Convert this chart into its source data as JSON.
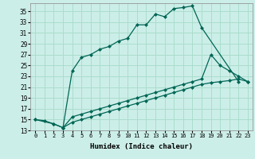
{
  "title": "",
  "xlabel": "Humidex (Indice chaleur)",
  "bg_color": "#cceee8",
  "grid_color": "#aaddcc",
  "line_color": "#006655",
  "xlim": [
    -0.5,
    23.5
  ],
  "ylim": [
    13,
    36.5
  ],
  "xticks": [
    0,
    1,
    2,
    3,
    4,
    5,
    6,
    7,
    8,
    9,
    10,
    11,
    12,
    13,
    14,
    15,
    16,
    17,
    18,
    19,
    20,
    21,
    22,
    23
  ],
  "yticks": [
    13,
    15,
    17,
    19,
    21,
    23,
    25,
    27,
    29,
    31,
    33,
    35
  ],
  "line1_x": [
    0,
    1,
    2,
    3,
    4,
    5,
    6,
    7,
    8,
    9,
    10,
    11,
    12,
    13,
    14,
    15,
    16,
    17,
    18,
    22
  ],
  "line1_y": [
    15,
    14.8,
    14.2,
    13.5,
    24.0,
    26.5,
    27.0,
    28.0,
    28.5,
    29.5,
    30.0,
    32.5,
    32.5,
    34.5,
    34.0,
    35.5,
    35.7,
    36.0,
    32.0,
    22.0
  ],
  "line2_x": [
    0,
    2,
    3,
    4,
    5,
    6,
    7,
    8,
    9,
    10,
    11,
    12,
    13,
    14,
    15,
    16,
    17,
    18,
    19,
    20,
    21,
    22,
    23
  ],
  "line2_y": [
    15,
    14.2,
    13.5,
    15.5,
    16.0,
    16.5,
    17.0,
    17.5,
    18.0,
    18.5,
    19.0,
    19.5,
    20.0,
    20.5,
    21.0,
    21.5,
    22.0,
    22.5,
    27.0,
    25.0,
    24.0,
    23.0,
    22.0
  ],
  "line3_x": [
    3,
    4,
    5,
    6,
    7,
    8,
    9,
    10,
    11,
    12,
    13,
    14,
    15,
    16,
    17,
    18,
    19,
    20,
    21,
    22,
    23
  ],
  "line3_y": [
    13.5,
    14.5,
    15.0,
    15.5,
    16.0,
    16.5,
    17.0,
    17.5,
    18.0,
    18.5,
    19.0,
    19.5,
    20.0,
    20.5,
    21.0,
    21.5,
    21.8,
    22.0,
    22.2,
    22.5,
    22.0
  ]
}
